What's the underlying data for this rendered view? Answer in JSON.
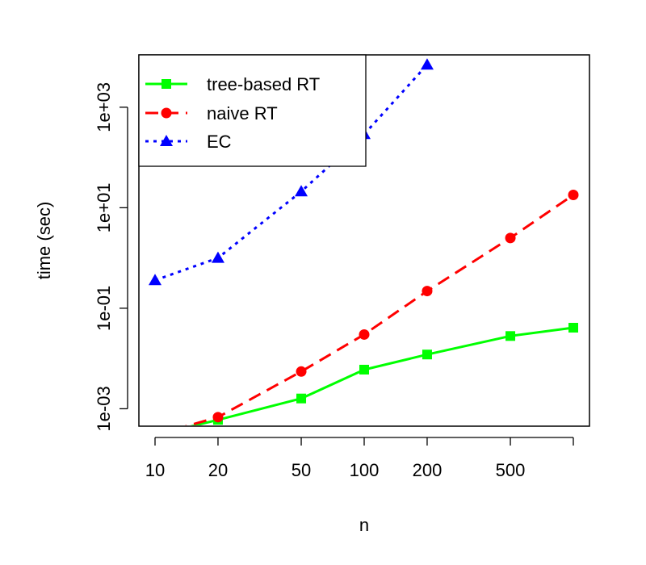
{
  "chart_data": {
    "type": "line",
    "xlabel": "n",
    "ylabel": "time (sec)",
    "x_scale": "log",
    "y_scale": "log",
    "xlim": [
      10,
      1000
    ],
    "ylim": [
      0.00045,
      11000
    ],
    "x_ticks": [
      10,
      20,
      50,
      100,
      200,
      500,
      1000
    ],
    "x_tick_labels": [
      "10",
      "20",
      "50",
      "100",
      "200",
      "500",
      ""
    ],
    "y_ticks": [
      0.001,
      0.1,
      10,
      1000
    ],
    "y_tick_labels": [
      "1e-03",
      "1e-01",
      "1e+01",
      "1e+03"
    ],
    "grid": false,
    "legend_position": "top-left",
    "series": [
      {
        "name": "tree-based RT",
        "color": "#00ff00",
        "line_style": "solid",
        "marker": "square",
        "x": [
          10,
          20,
          50,
          100,
          200,
          500,
          1000
        ],
        "y": [
          0.0003,
          0.0006,
          0.0016,
          0.006,
          0.012,
          0.028,
          0.041
        ]
      },
      {
        "name": "naive RT",
        "color": "#ff0000",
        "line_style": "dashed",
        "marker": "circle",
        "x": [
          10,
          20,
          50,
          100,
          200,
          500,
          1000
        ],
        "y": [
          0.0003,
          0.00068,
          0.0055,
          0.03,
          0.22,
          2.5,
          18
        ]
      },
      {
        "name": "EC",
        "color": "#0000ff",
        "line_style": "dotted",
        "marker": "triangle",
        "x": [
          10,
          20,
          50,
          100,
          200
        ],
        "y": [
          0.36,
          1.0,
          21,
          290,
          7000
        ]
      }
    ]
  }
}
